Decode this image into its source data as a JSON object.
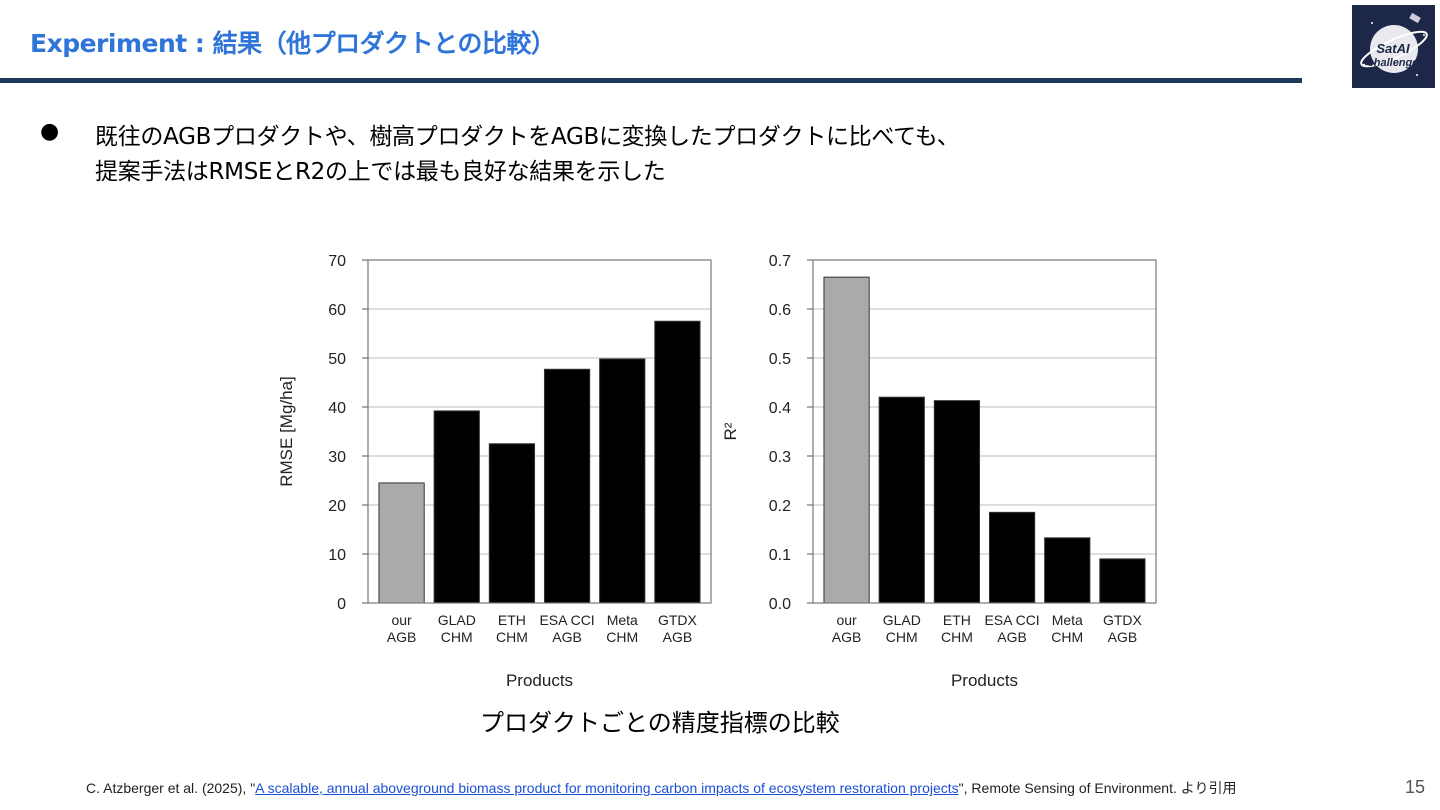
{
  "slide": {
    "title": "Experiment : 結果（他プロダクトとの比較）",
    "bullet_symbol": "●",
    "bullet_line1": "既往のAGBプロダクトや、樹高プロダクトをAGBに変換したプロダクトに比べても、",
    "bullet_line2": "提案手法はRMSEとR2の上では最も良好な結果を示した",
    "caption": "プロダクトごとの精度指標の比較",
    "citation_prefix": "C. Atzberger et al. (2025), \"",
    "citation_link": "A scalable, annual aboveground biomass product for monitoring carbon impacts of ecosystem restoration projects",
    "citation_suffix": "\", Remote Sensing of Environment. より引用",
    "page_number": "15",
    "logo_text_1": "SatAI",
    "logo_text_2": "challenge"
  },
  "colors": {
    "title_blue": "#2f74d8",
    "rule_navy": "#1b3a5c",
    "bar_highlight": "#aaaaaa",
    "bar_default": "#000000"
  },
  "chart_data": [
    {
      "type": "bar",
      "categories": [
        [
          "our",
          "AGB"
        ],
        [
          "GLAD",
          "CHM"
        ],
        [
          "ETH",
          "CHM"
        ],
        [
          "ESA CCI",
          "AGB"
        ],
        [
          "Meta",
          "CHM"
        ],
        [
          "GTDX",
          "AGB"
        ]
      ],
      "values": [
        24.5,
        39.2,
        32.5,
        47.7,
        49.8,
        57.5
      ],
      "xlabel": "Products",
      "ylabel": "RMSE [Mg/ha]",
      "ylim": [
        0,
        70
      ],
      "yticks": [
        "0",
        "10",
        "20",
        "30",
        "40",
        "50",
        "60",
        "70"
      ],
      "grid": true,
      "highlight_index": 0
    },
    {
      "type": "bar",
      "categories": [
        [
          "our",
          "AGB"
        ],
        [
          "GLAD",
          "CHM"
        ],
        [
          "ETH",
          "CHM"
        ],
        [
          "ESA CCI",
          "AGB"
        ],
        [
          "Meta",
          "CHM"
        ],
        [
          "GTDX",
          "AGB"
        ]
      ],
      "values": [
        0.665,
        0.42,
        0.413,
        0.185,
        0.133,
        0.09
      ],
      "xlabel": "Products",
      "ylabel": "R²",
      "ylim": [
        0,
        0.7
      ],
      "yticks": [
        "0.0",
        "0.1",
        "0.2",
        "0.3",
        "0.4",
        "0.5",
        "0.6",
        "0.7"
      ],
      "grid": true,
      "highlight_index": 0
    }
  ]
}
